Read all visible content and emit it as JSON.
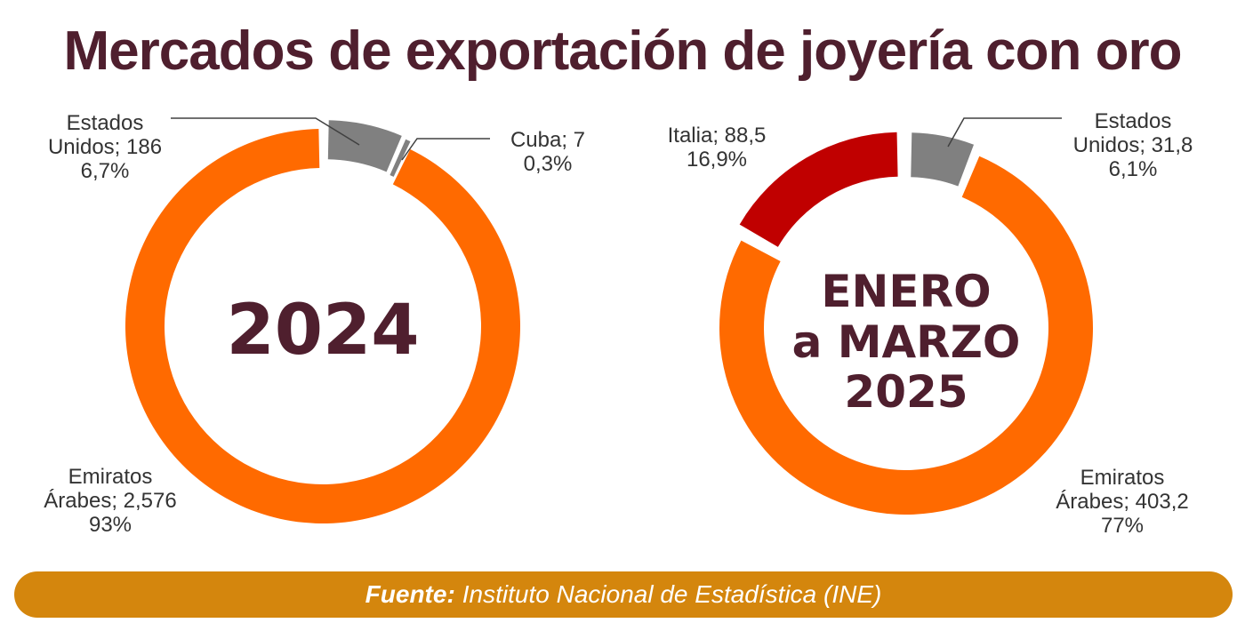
{
  "title": "Mercados de exportación de joyería con oro",
  "colors": {
    "title": "#4f1f2e",
    "estados_unidos": "#808080",
    "cuba": "#808080",
    "emiratos": "#ff6a00",
    "italia": "#c00000",
    "footer_bg": "#d4860d"
  },
  "chart_data": [
    {
      "type": "pie",
      "center_label": [
        "2024"
      ],
      "slices": [
        {
          "label_lines": [
            "Estados",
            "Unidos; 186",
            "6,7%"
          ],
          "value": 186,
          "percent": 6.7,
          "color": "#808080"
        },
        {
          "label_lines": [
            "Cuba; 7",
            "0,3%"
          ],
          "value": 7,
          "percent": 0.3,
          "color": "#808080"
        },
        {
          "label_lines": [
            "Emiratos",
            "Árabes; 2,576",
            "93%"
          ],
          "value": 2576,
          "percent": 93,
          "color": "#ff6a00"
        }
      ]
    },
    {
      "type": "pie",
      "center_label": [
        "ENERO",
        "a MARZO",
        "2025"
      ],
      "slices": [
        {
          "label_lines": [
            "Estados",
            "Unidos; 31,8",
            "6,1%"
          ],
          "value": 31.8,
          "percent": 6.1,
          "color": "#808080"
        },
        {
          "label_lines": [
            "Emiratos",
            "Árabes; 403,2",
            "77%"
          ],
          "value": 403.2,
          "percent": 77,
          "color": "#ff6a00"
        },
        {
          "label_lines": [
            "Italia; 88,5",
            "16,9%"
          ],
          "value": 88.5,
          "percent": 16.9,
          "color": "#c00000"
        }
      ]
    }
  ],
  "footer": {
    "source_key": "Fuente:",
    "source_text": "Instituto Nacional de Estadística (INE)"
  }
}
